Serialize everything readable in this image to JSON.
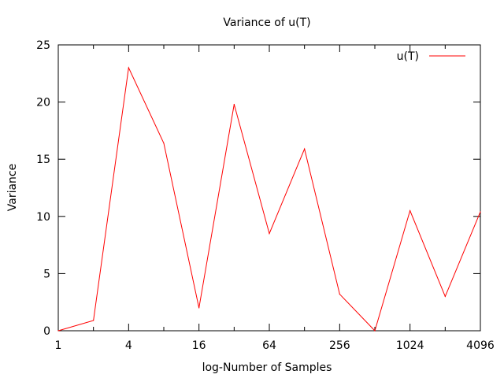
{
  "chart_data": {
    "type": "line",
    "title": "Variance of u(T)",
    "xlabel": "log-Number of Samples",
    "ylabel": "Variance",
    "x_scale": "log2",
    "xlim": [
      1,
      4096
    ],
    "ylim": [
      0,
      25
    ],
    "x_ticks": [
      1,
      4,
      16,
      64,
      256,
      1024,
      4096
    ],
    "y_ticks": [
      0,
      5,
      10,
      15,
      20,
      25
    ],
    "grid": false,
    "legend_position": "top-right",
    "series": [
      {
        "name": "u(T)",
        "color": "#ff0000",
        "x": [
          1,
          2,
          4,
          8,
          16,
          32,
          64,
          128,
          256,
          512,
          1024,
          2048,
          4096
        ],
        "y": [
          0.0,
          0.9,
          23.0,
          16.4,
          2.0,
          19.8,
          8.5,
          15.9,
          3.2,
          0.0,
          10.5,
          3.0,
          10.4
        ]
      }
    ]
  }
}
